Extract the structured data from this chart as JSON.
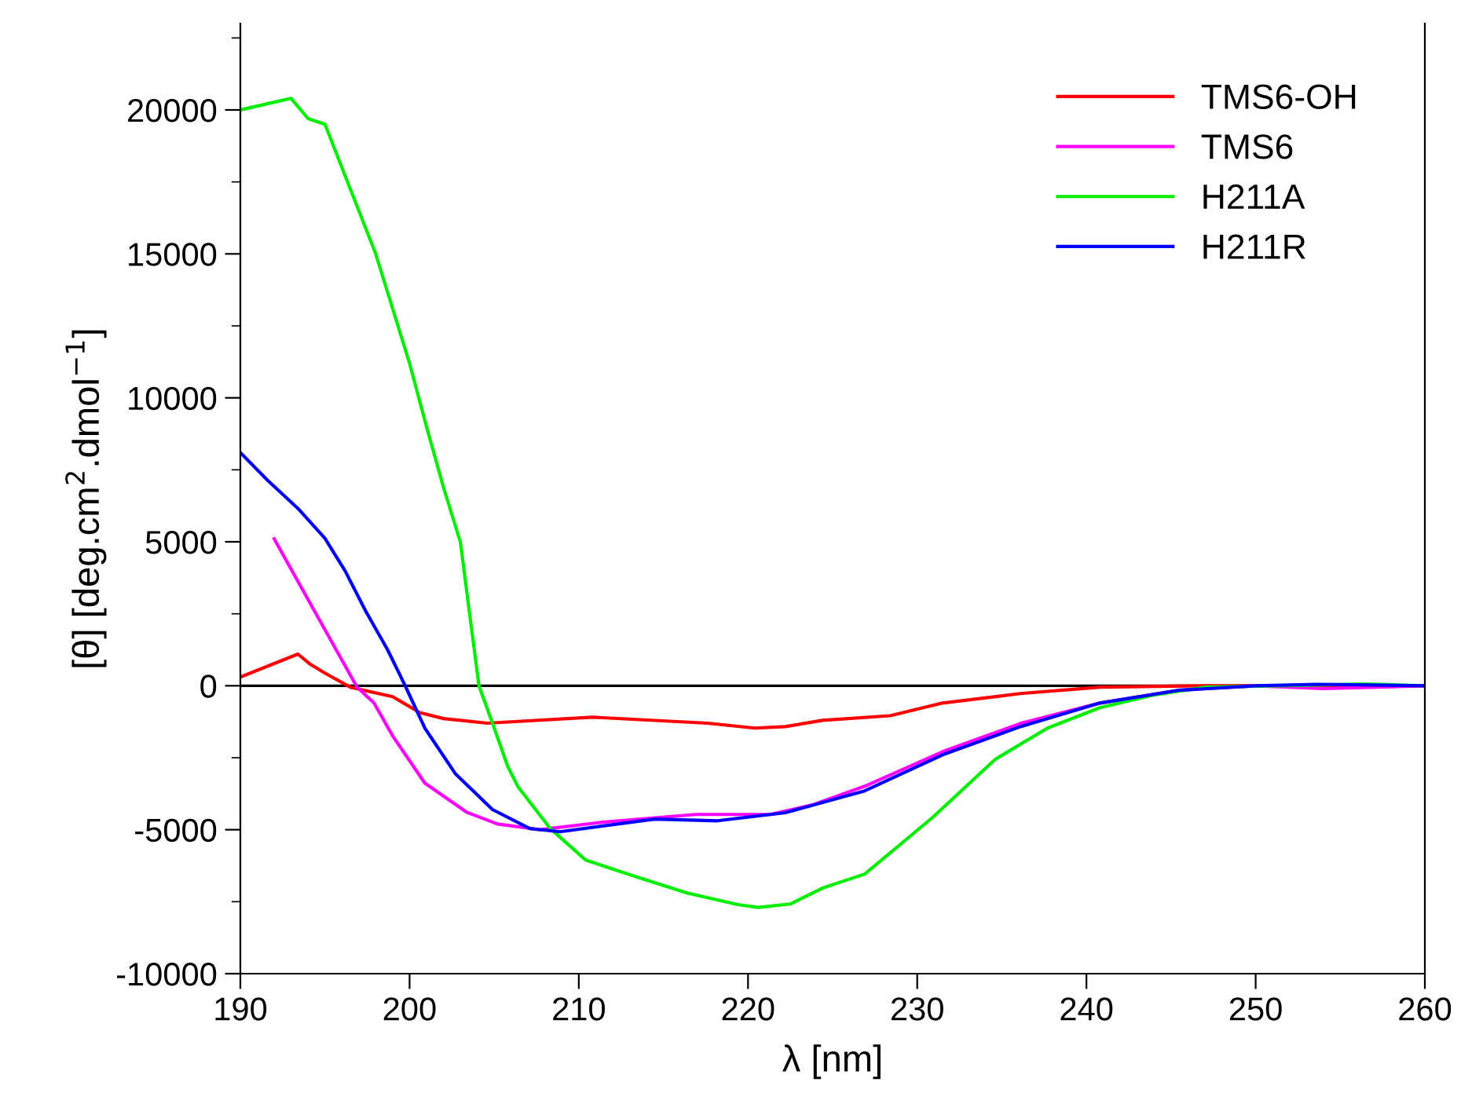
{
  "chart_data": {
    "type": "line",
    "xlabel": "λ [nm]",
    "ylabel": "[θ] [deg.cm$^{2}$.dmol$^{−1}$]",
    "xlim": [
      190,
      260
    ],
    "ylim": [
      -10000,
      23000
    ],
    "xticks": [
      190,
      200,
      210,
      220,
      230,
      240,
      250,
      260
    ],
    "yticks": [
      -10000,
      -5000,
      0,
      5000,
      10000,
      15000,
      20000
    ],
    "grid": false,
    "legend": "top right",
    "marker": "none",
    "line_style": "solid",
    "ref_lines": [
      {
        "axis": "y",
        "value": 0,
        "color": "#000000"
      }
    ],
    "series": [
      {
        "name": "TMS6-OH",
        "color": "#ff0000",
        "x": [
          190,
          193.4,
          194.1,
          195,
          196.5,
          199,
          200.6,
          202,
          204.6,
          210.8,
          217.6,
          220.4,
          222.2,
          224.4,
          228.4,
          231.5,
          236.1,
          240.8,
          247,
          260
        ],
        "values": [
          300,
          1100,
          760,
          440,
          -50,
          -380,
          -930,
          -1140,
          -1300,
          -1090,
          -1300,
          -1470,
          -1420,
          -1200,
          -1040,
          -600,
          -270,
          -50,
          0,
          0
        ]
      },
      {
        "name": "TMS6",
        "color": "#ff00ff",
        "x": [
          192,
          196.9,
          197.9,
          199,
          200.9,
          202.1,
          203.4,
          205.2,
          207.7,
          211.4,
          216.9,
          221.3,
          223.8,
          226.9,
          231.5,
          236.1,
          240.8,
          245.4,
          250,
          254,
          260
        ],
        "values": [
          5100,
          -50,
          -600,
          -1740,
          -3380,
          -3870,
          -4400,
          -4800,
          -5000,
          -4740,
          -4470,
          -4470,
          -4140,
          -3490,
          -2290,
          -1310,
          -600,
          -160,
          0,
          -100,
          0
        ]
      },
      {
        "name": "H211A",
        "color": "#00ee00",
        "x": [
          190,
          193,
          194,
          195,
          196,
          197,
          198,
          199,
          200,
          201,
          202,
          203,
          204.1,
          204.9,
          205.8,
          206.4,
          208.3,
          210.4,
          213.2,
          216.4,
          219.4,
          220.6,
          222.5,
          224.4,
          226.9,
          230.9,
          234.6,
          237.7,
          240.8,
          243.9,
          247,
          256.5,
          260
        ],
        "values": [
          20000,
          20400,
          19700,
          19500,
          18000,
          16500,
          15000,
          13100,
          11200,
          9000,
          6900,
          5000,
          0,
          -1300,
          -2800,
          -3500,
          -4950,
          -6050,
          -6600,
          -7200,
          -7600,
          -7700,
          -7580,
          -7030,
          -6540,
          -4580,
          -2560,
          -1470,
          -760,
          -330,
          -50,
          60,
          0
        ]
      },
      {
        "name": "H211R",
        "color": "#0000ff",
        "x": [
          190,
          191.6,
          193.4,
          195,
          196.2,
          197.4,
          198.7,
          199.7,
          200.9,
          202.7,
          204.9,
          207.1,
          208.9,
          214.5,
          218.2,
          222.2,
          226.9,
          231.5,
          236.1,
          240.8,
          245.4,
          250,
          253.6,
          260
        ],
        "values": [
          8100,
          7140,
          6160,
          5120,
          3980,
          2600,
          1250,
          50,
          -1470,
          -3050,
          -4300,
          -4960,
          -5070,
          -4630,
          -4690,
          -4410,
          -3650,
          -2400,
          -1420,
          -600,
          -160,
          0,
          50,
          0
        ]
      }
    ]
  }
}
